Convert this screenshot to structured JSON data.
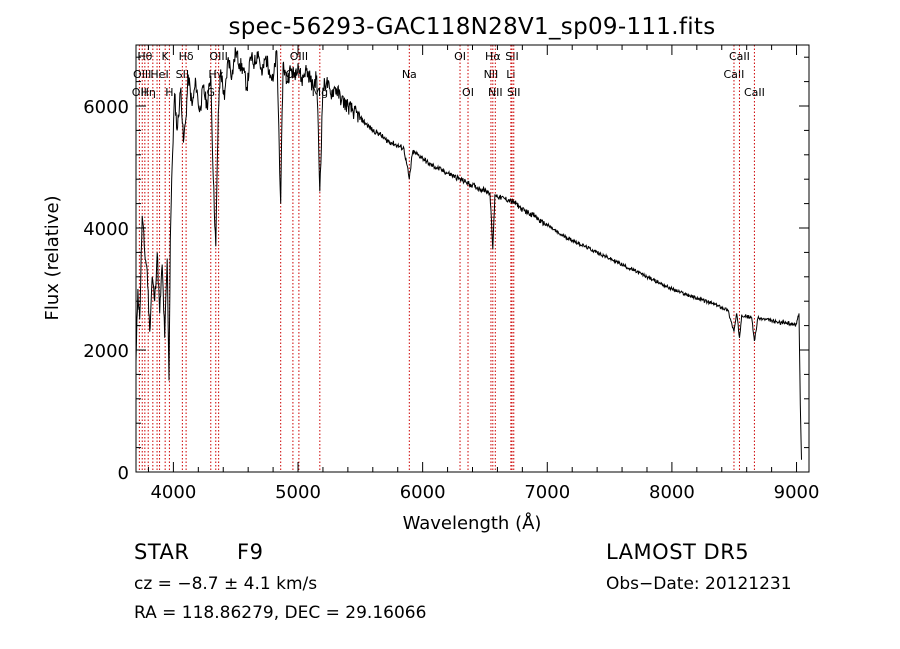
{
  "chart_data": {
    "type": "line",
    "title": "spec-56293-GAC118N28V1_sp09-111.fits",
    "xlabel": "Wavelength (Å)",
    "ylabel": "Flux (relative)",
    "xlim": [
      3700,
      9100
    ],
    "ylim": [
      0,
      7000
    ],
    "x_ticks": [
      4000,
      5000,
      6000,
      7000,
      8000,
      9000
    ],
    "y_ticks": [
      0,
      2000,
      4000,
      6000
    ],
    "grid": false,
    "line_color": "#000000",
    "marker_line_color": "#cc0000",
    "series": [
      {
        "x": [
          3700,
          3715,
          3730,
          3750,
          3770,
          3790,
          3810,
          3830,
          3850,
          3870,
          3890,
          3910,
          3930,
          3950,
          3965,
          3975,
          3990,
          4010,
          4030,
          4060,
          4080,
          4100,
          4120,
          4150,
          4180,
          4210,
          4240,
          4270,
          4300,
          4320,
          4340,
          4360,
          4380,
          4410,
          4440,
          4470,
          4500,
          4530,
          4560,
          4590,
          4620,
          4650,
          4680,
          4710,
          4740,
          4770,
          4800,
          4830,
          4861,
          4880,
          4910,
          4940,
          4970,
          5000,
          5030,
          5060,
          5090,
          5120,
          5150,
          5175,
          5200,
          5230,
          5260,
          5300,
          5350,
          5400,
          5450,
          5500,
          5550,
          5600,
          5650,
          5700,
          5750,
          5800,
          5850,
          5893,
          5920,
          5960,
          6000,
          6050,
          6100,
          6150,
          6200,
          6250,
          6300,
          6350,
          6400,
          6450,
          6500,
          6540,
          6563,
          6580,
          6620,
          6660,
          6700,
          6750,
          6800,
          6850,
          6900,
          6950,
          7000,
          7100,
          7200,
          7300,
          7400,
          7500,
          7600,
          7700,
          7800,
          7900,
          8000,
          8100,
          8200,
          8300,
          8400,
          8450,
          8498,
          8520,
          8542,
          8560,
          8600,
          8640,
          8662,
          8690,
          8750,
          8800,
          8850,
          8900,
          8950,
          9000,
          9020,
          9030,
          9040
        ],
        "y": [
          1800,
          3000,
          2500,
          4200,
          3600,
          3300,
          2300,
          3200,
          2800,
          3600,
          2600,
          3400,
          2200,
          3500,
          1500,
          3800,
          5000,
          6200,
          5600,
          6300,
          5400,
          5800,
          6500,
          6000,
          6400,
          5900,
          6300,
          6000,
          6500,
          4800,
          3700,
          5900,
          6600,
          6100,
          6800,
          6500,
          6900,
          6700,
          6600,
          6300,
          6800,
          6700,
          6900,
          6500,
          6800,
          6600,
          6400,
          6900,
          4400,
          6700,
          6400,
          6600,
          6500,
          6700,
          6400,
          6600,
          6500,
          6300,
          6500,
          4600,
          6300,
          6400,
          6200,
          6300,
          6100,
          6000,
          5900,
          5800,
          5700,
          5600,
          5550,
          5450,
          5400,
          5350,
          5300,
          4800,
          5250,
          5200,
          5150,
          5050,
          5000,
          4950,
          4900,
          4850,
          4800,
          4750,
          4700,
          4650,
          4620,
          4580,
          3650,
          4550,
          4500,
          4480,
          4450,
          4400,
          4300,
          4250,
          4200,
          4100,
          4050,
          3900,
          3800,
          3700,
          3600,
          3500,
          3400,
          3300,
          3200,
          3100,
          3000,
          2920,
          2850,
          2780,
          2700,
          2650,
          2300,
          2600,
          2200,
          2580,
          2550,
          2530,
          2150,
          2520,
          2500,
          2480,
          2450,
          2450,
          2430,
          2420,
          2600,
          1100,
          200
        ]
      }
    ],
    "lines": [
      {
        "x": 3727,
        "label": "OII",
        "row": 2
      },
      {
        "x": 3750,
        "label": "OIII",
        "row": 1
      },
      {
        "x": 3771,
        "label": "Hθ",
        "row": 0
      },
      {
        "x": 3798,
        "label": "Hη",
        "row": 2
      },
      {
        "x": 3835,
        "label": "",
        "row": -1
      },
      {
        "x": 3869,
        "label": "",
        "row": -1
      },
      {
        "x": 3889,
        "label": "HeI",
        "row": 1
      },
      {
        "x": 3934,
        "label": "K",
        "row": 0
      },
      {
        "x": 3968,
        "label": "H",
        "row": 2
      },
      {
        "x": 4072,
        "label": "SII",
        "row": 1
      },
      {
        "x": 4102,
        "label": "Hδ",
        "row": 0
      },
      {
        "x": 4300,
        "label": "G",
        "row": 2
      },
      {
        "x": 4340,
        "label": "Hγ",
        "row": 1
      },
      {
        "x": 4363,
        "label": "OIII",
        "row": 0
      },
      {
        "x": 4861,
        "label": "",
        "row": -1
      },
      {
        "x": 4959,
        "label": "OII",
        "row": 1
      },
      {
        "x": 5007,
        "label": "OIII",
        "row": 0
      },
      {
        "x": 5175,
        "label": "Mg",
        "row": 2
      },
      {
        "x": 5893,
        "label": "Na",
        "row": 1
      },
      {
        "x": 6300,
        "label": "OI",
        "row": 0
      },
      {
        "x": 6364,
        "label": "OI",
        "row": 2
      },
      {
        "x": 6548,
        "label": "NII",
        "row": 1
      },
      {
        "x": 6563,
        "label": "Hα",
        "row": 0
      },
      {
        "x": 6583,
        "label": "NII",
        "row": 2
      },
      {
        "x": 6708,
        "label": "Li",
        "row": 1
      },
      {
        "x": 6717,
        "label": "SII",
        "row": 0
      },
      {
        "x": 6731,
        "label": "SII",
        "row": 2
      },
      {
        "x": 8498,
        "label": "CaII",
        "row": 1
      },
      {
        "x": 8542,
        "label": "CaII",
        "row": 0
      },
      {
        "x": 8662,
        "label": "CaII",
        "row": 2
      }
    ]
  },
  "footer": {
    "class": "STAR",
    "subclass": "F9",
    "survey": "LAMOST DR5",
    "cz": "cz = −8.7 ± 4.1 km/s",
    "obs_date": "Obs−Date: 20121231",
    "coords": "RA = 118.86279, DEC =  29.16066"
  }
}
